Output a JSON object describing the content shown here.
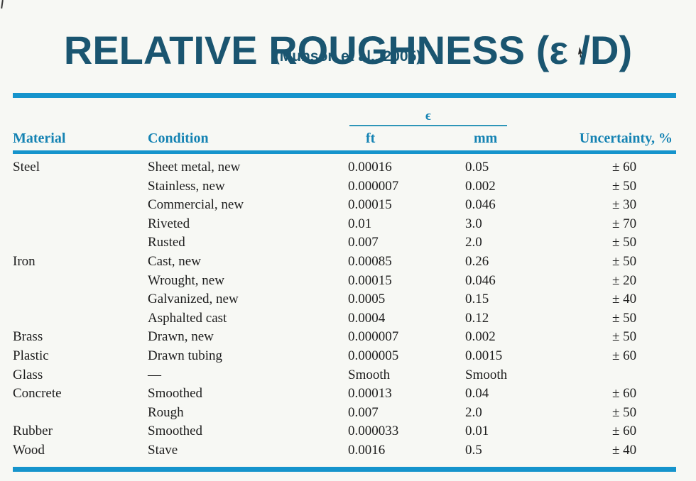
{
  "page": {
    "title_main": "RELATIVE ROUGHNESS ",
    "title_symbol": "(ε /D)",
    "subtitle": "(Munson et al., 2005)"
  },
  "colors": {
    "title_text": "#1a5570",
    "header_text": "#1583b3",
    "rule_blue": "#1694cc",
    "body_text": "#1d1d1d",
    "background": "#f7f8f4"
  },
  "icons": {
    "mouse_cursor": "cursor-arrow"
  },
  "table": {
    "epsilon_header": "ϵ",
    "columns": {
      "material": "Material",
      "condition": "Condition",
      "ft": "ft",
      "mm": "mm",
      "uncertainty": "Uncertainty, %"
    },
    "rows": [
      {
        "material": "Steel",
        "condition": "Sheet metal, new",
        "ft": "0.00016",
        "mm": "0.05",
        "uncertainty": "± 60"
      },
      {
        "material": "",
        "condition": "Stainless, new",
        "ft": "0.000007",
        "mm": "0.002",
        "uncertainty": "± 50"
      },
      {
        "material": "",
        "condition": "Commercial, new",
        "ft": "0.00015",
        "mm": "0.046",
        "uncertainty": "± 30"
      },
      {
        "material": "",
        "condition": "Riveted",
        "ft": "0.01",
        "mm": "3.0",
        "uncertainty": "± 70"
      },
      {
        "material": "",
        "condition": "Rusted",
        "ft": "0.007",
        "mm": "2.0",
        "uncertainty": "± 50"
      },
      {
        "material": "Iron",
        "condition": "Cast, new",
        "ft": "0.00085",
        "mm": "0.26",
        "uncertainty": "± 50"
      },
      {
        "material": "",
        "condition": "Wrought, new",
        "ft": "0.00015",
        "mm": "0.046",
        "uncertainty": "± 20"
      },
      {
        "material": "",
        "condition": "Galvanized, new",
        "ft": "0.0005",
        "mm": "0.15",
        "uncertainty": "± 40"
      },
      {
        "material": "",
        "condition": "Asphalted cast",
        "ft": "0.0004",
        "mm": "0.12",
        "uncertainty": "± 50"
      },
      {
        "material": "Brass",
        "condition": "Drawn, new",
        "ft": "0.000007",
        "mm": "0.002",
        "uncertainty": "± 50"
      },
      {
        "material": "Plastic",
        "condition": "Drawn tubing",
        "ft": "0.000005",
        "mm": "0.0015",
        "uncertainty": "± 60"
      },
      {
        "material": "Glass",
        "condition": "—",
        "ft": "Smooth",
        "mm": "Smooth",
        "uncertainty": ""
      },
      {
        "material": "Concrete",
        "condition": "Smoothed",
        "ft": "0.00013",
        "mm": "0.04",
        "uncertainty": "± 60"
      },
      {
        "material": "",
        "condition": "Rough",
        "ft": "0.007",
        "mm": "2.0",
        "uncertainty": "± 50"
      },
      {
        "material": "Rubber",
        "condition": "Smoothed",
        "ft": "0.000033",
        "mm": "0.01",
        "uncertainty": "± 60"
      },
      {
        "material": "Wood",
        "condition": "Stave",
        "ft": "0.0016",
        "mm": "0.5",
        "uncertainty": "± 40"
      }
    ]
  }
}
